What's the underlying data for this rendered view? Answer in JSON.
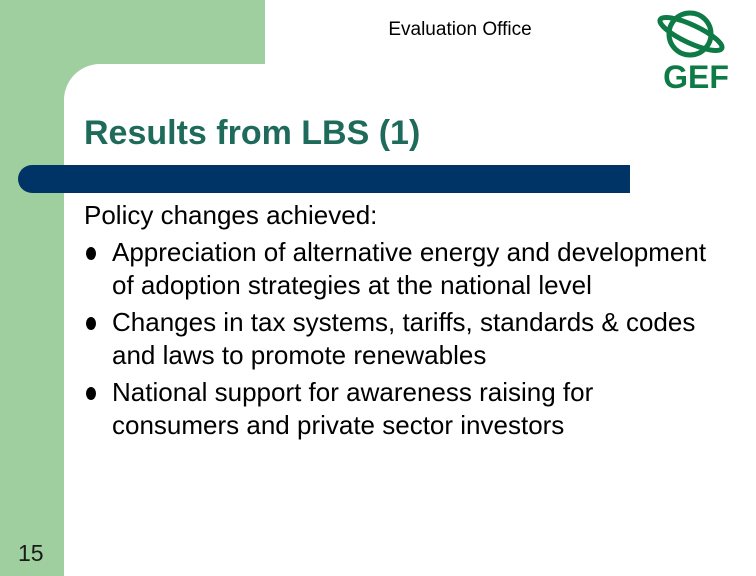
{
  "header": {
    "office": "Evaluation Office"
  },
  "logo": {
    "text": "GEF",
    "icon": "globe-icon",
    "color": "#0e7a45"
  },
  "slide": {
    "title": "Results from LBS (1)",
    "intro": "Policy changes achieved:",
    "bullets": [
      "Appreciation of alternative energy and development of adoption strategies at the national level",
      "Changes in tax systems, tariffs, standards & codes and laws to promote renewables",
      "National support for awareness raising for consumers and private sector investors"
    ],
    "page_number": "15"
  },
  "colors": {
    "accent_green": "#9fcf9f",
    "title_color": "#1f6b5b",
    "bar_color": "#003366"
  }
}
